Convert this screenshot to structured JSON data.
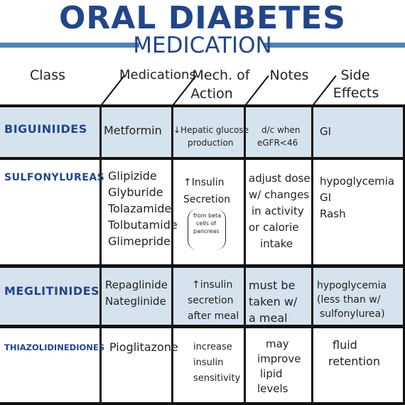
{
  "title": "ORAL DIABETES",
  "subtitle": "MEDICATION",
  "headers": {
    "class": "Class",
    "medications": "Medications",
    "mech_line1": "Mech. of",
    "mech_line2": "Action",
    "notes": "Notes",
    "side_line1": "Side",
    "side_line2": "Effects"
  },
  "rows": [
    {
      "class": "BIGUINIIDES",
      "medications": [
        "Metformin"
      ],
      "mechanism": [
        "↓Hepatic glucose",
        "production"
      ],
      "notes": [
        "d/c when",
        "eGFR<46"
      ],
      "side_effects": [
        "GI"
      ]
    },
    {
      "class": "SULFONYLUREAS",
      "medications": [
        "Glipizide",
        "Glyburide",
        "Tolazamide",
        "Tolbutamide",
        "Glimepride"
      ],
      "mechanism": [
        "↑Insulin",
        "Secretion"
      ],
      "mechanism_note": [
        "from beta",
        "cells of",
        "pancreas"
      ],
      "notes": [
        "adjust dose",
        "w/ changes",
        "in activity",
        "or calorie",
        "intake"
      ],
      "side_effects": [
        "hypoglycemia",
        "GI",
        "Rash"
      ]
    },
    {
      "class": "MEGLITINIDES",
      "medications": [
        "Repaglinide",
        "Nateglinide"
      ],
      "mechanism": [
        "↑insulin",
        "secretion",
        "after meal"
      ],
      "notes": [
        "must be",
        "taken w/",
        "a meal"
      ],
      "side_effects": [
        "hypoglycemia",
        "(less than w/",
        "sulfonylurea)"
      ]
    },
    {
      "class": "THIAZOLIDINEDIONES",
      "medications": [
        "Pioglitazone"
      ],
      "mechanism": [
        "increase",
        "insulin",
        "sensitivity"
      ],
      "notes": [
        "may",
        "improve",
        "lipid",
        "levels"
      ],
      "side_effects": [
        "fluid",
        "retention"
      ]
    }
  ],
  "colors": {
    "title": "#22468a",
    "band": "#d5e3ef",
    "accent_line": "#4f82b6"
  }
}
